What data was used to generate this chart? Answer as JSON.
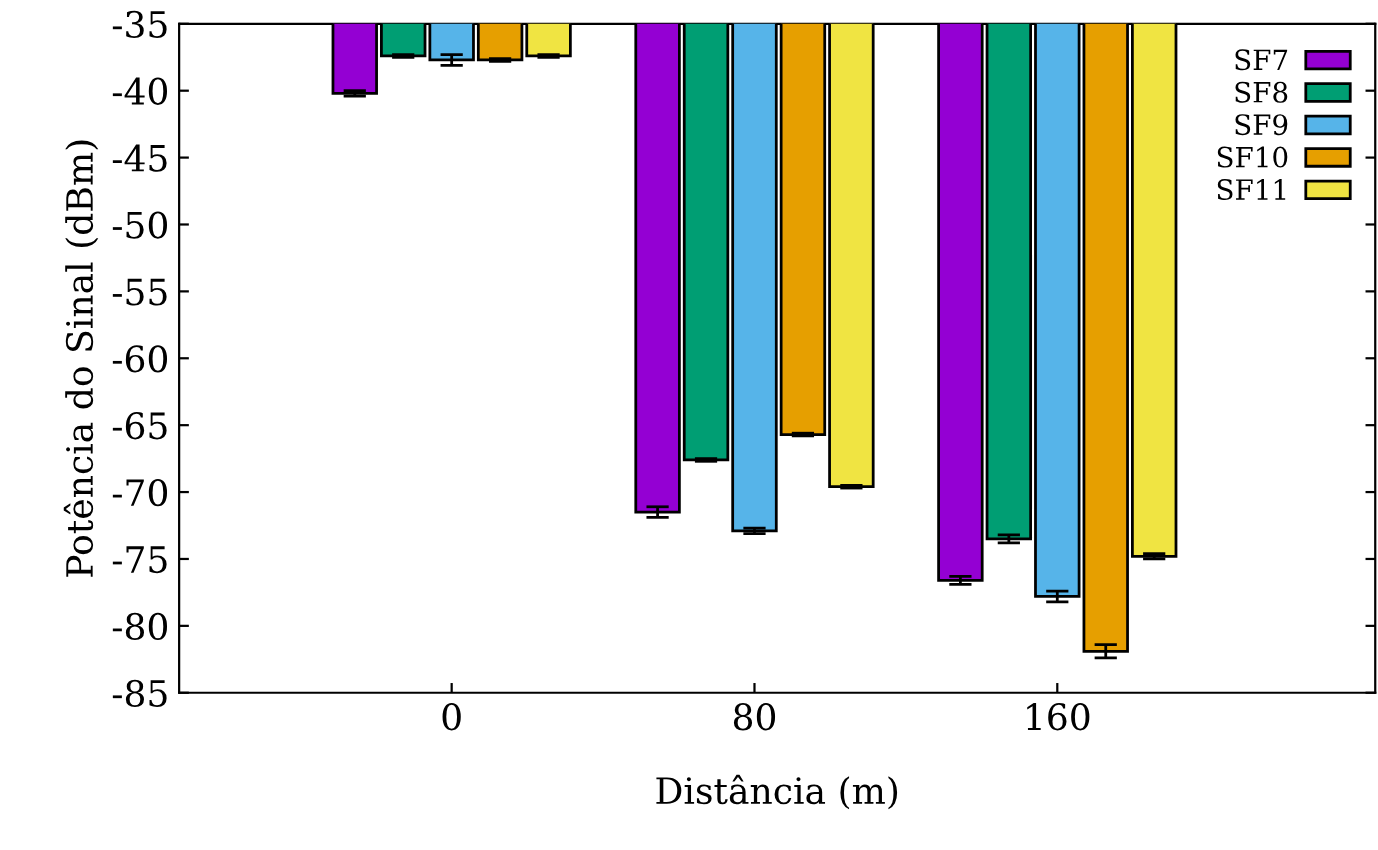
{
  "chart_data": {
    "type": "bar",
    "xlabel": "Distância (m)",
    "ylabel": "Potência do Sinal (dBm)",
    "categories": [
      "0",
      "80",
      "160"
    ],
    "series": [
      {
        "name": "SF7",
        "color": "#9400d3",
        "values": [
          -40.2,
          -71.5,
          -76.6
        ],
        "errors": [
          0.2,
          0.4,
          0.3
        ]
      },
      {
        "name": "SF8",
        "color": "#009e73",
        "values": [
          -37.4,
          -67.6,
          -73.5
        ],
        "errors": [
          0.1,
          0.1,
          0.3
        ]
      },
      {
        "name": "SF9",
        "color": "#56b4e9",
        "values": [
          -37.7,
          -72.9,
          -77.8
        ],
        "errors": [
          0.4,
          0.2,
          0.4
        ]
      },
      {
        "name": "SF10",
        "color": "#e69f00",
        "values": [
          -37.7,
          -65.7,
          -81.9
        ],
        "errors": [
          0.1,
          0.1,
          0.5
        ]
      },
      {
        "name": "SF11",
        "color": "#f0e442",
        "values": [
          -37.4,
          -69.6,
          -74.8
        ],
        "errors": [
          0.1,
          0.1,
          0.2
        ]
      }
    ],
    "ylim": [
      -85,
      -35
    ],
    "yticks": [
      -35,
      -40,
      -45,
      -50,
      -55,
      -60,
      -65,
      -70,
      -75,
      -80,
      -85
    ],
    "legend": "top right",
    "grid": false
  }
}
